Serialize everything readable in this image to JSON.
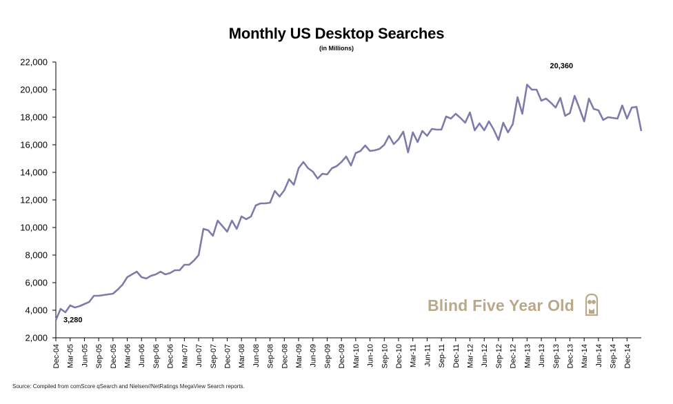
{
  "title": "Monthly US Desktop Searches",
  "subtitle": "(in Millions)",
  "source": "Source: Compiled from comScore qSearch and Nielsen//NetRatings MegaView Search reports.",
  "watermark": "Blind Five Year Old",
  "watermark_icon": "owl-icon",
  "colors": {
    "line": "#7c7bab",
    "axis": "#000000",
    "watermark": "#b9a988"
  },
  "chart_data": {
    "type": "line",
    "title": "Monthly US Desktop Searches",
    "subtitle": "(in Millions)",
    "xlabel": "",
    "ylabel": "",
    "ylim": [
      2000,
      22000
    ],
    "yticks": [
      2000,
      4000,
      6000,
      8000,
      10000,
      12000,
      14000,
      16000,
      18000,
      20000,
      22000
    ],
    "ytick_labels": [
      "2,000",
      "4,000",
      "6,000",
      "8,000",
      "10,000",
      "12,000",
      "14,000",
      "16,000",
      "18,000",
      "20,000",
      "22,000"
    ],
    "x_start": "Dec-04",
    "x_tick_labels": [
      "Dec-04",
      "Mar-05",
      "Jun-05",
      "Sep-05",
      "Dec-05",
      "Mar-06",
      "Jun-06",
      "Sep-06",
      "Dec-06",
      "Mar-07",
      "Jun-07",
      "Sep-07",
      "Dec-07",
      "Mar-08",
      "Jun-08",
      "Sep-08",
      "Dec-08",
      "Mar-09",
      "Jun-09",
      "Sep-09",
      "Dec-09",
      "Mar-10",
      "Jun-10",
      "Sep-10",
      "Dec-10",
      "Mar-11",
      "Jun-11",
      "Sep-11",
      "Dec-11",
      "Mar-12",
      "Jun-12",
      "Sep-12",
      "Dec-12",
      "Mar-13",
      "Jun-13",
      "Sep-13",
      "Dec-13",
      "Mar-14",
      "Jun-14",
      "Sep-14",
      "Dec-14"
    ],
    "grid": false,
    "legend": "none",
    "series": [
      {
        "values": [
          3280,
          4100,
          3850,
          4350,
          4200,
          4300,
          4450,
          4600,
          5050,
          5050,
          5100,
          5150,
          5200,
          5500,
          5850,
          6400,
          6600,
          6800,
          6400,
          6300,
          6500,
          6600,
          6800,
          6600,
          6700,
          6900,
          6900,
          7300,
          7300,
          7600,
          8000,
          9900,
          9800,
          9400,
          10500,
          10100,
          9700,
          10500,
          9900,
          10800,
          10600,
          10800,
          11600,
          11750,
          11750,
          11800,
          12650,
          12250,
          12700,
          13500,
          13100,
          14300,
          14750,
          14300,
          14050,
          13550,
          13900,
          13850,
          14300,
          14450,
          14750,
          15150,
          14500,
          15400,
          15550,
          15950,
          15550,
          15600,
          15700,
          16000,
          16650,
          16050,
          16400,
          16950,
          15450,
          16900,
          16200,
          17000,
          16650,
          17150,
          17100,
          17100,
          18050,
          17900,
          18250,
          17950,
          17600,
          18350,
          17050,
          17550,
          17050,
          17700,
          17100,
          16350,
          17600,
          16900,
          17500,
          19450,
          18250,
          20360,
          20000,
          20000,
          19200,
          19350,
          19050,
          18700,
          19400,
          18100,
          18300,
          19550,
          18650,
          17700,
          19350,
          18600,
          18500,
          17800,
          18000,
          17950,
          17900,
          18850,
          17900,
          18700,
          18750,
          17000
        ]
      }
    ],
    "annotations": [
      {
        "label": "3,280",
        "point_index": 0
      },
      {
        "label": "20,360",
        "point_index": 99
      }
    ]
  }
}
